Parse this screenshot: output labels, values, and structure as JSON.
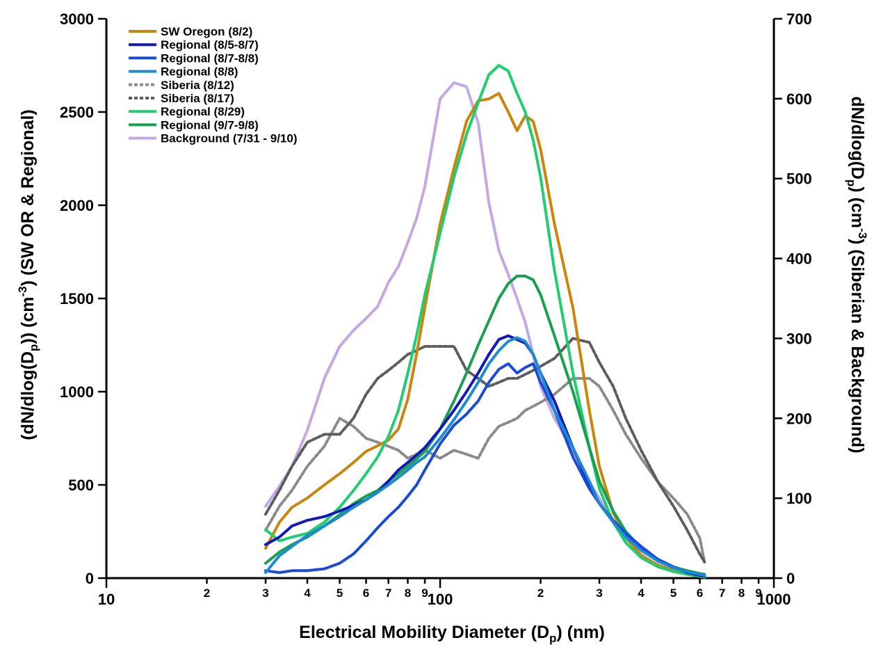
{
  "chart_data": {
    "type": "line",
    "xlabel_main": "Electrical Mobility Diameter (D",
    "xlabel_sub": "p",
    "xlabel_end": ") (nm)",
    "ylabel_left": {
      "a": "(dN/dlog(D",
      "b": "p",
      "c": ")) (cm",
      "d": "-3",
      "e": ") (SW OR & Regional)"
    },
    "ylabel_right": {
      "a": "dN/dlog(D",
      "b": "p",
      "c": ") (cm",
      "d": "-3",
      "e": ") (Siberian & Background)"
    },
    "x_scale": "log",
    "xlim": [
      10,
      1000
    ],
    "ylim_left": [
      0,
      3000
    ],
    "ylim_right": [
      0,
      700
    ],
    "x_major_ticks": [
      {
        "v": 10,
        "label": "10"
      },
      {
        "v": 100,
        "label": "100"
      },
      {
        "v": 1000,
        "label": "1000"
      }
    ],
    "x_minor_ticks": [
      {
        "v": 20,
        "label": "2"
      },
      {
        "v": 30,
        "label": "3"
      },
      {
        "v": 40,
        "label": "4"
      },
      {
        "v": 50,
        "label": "5"
      },
      {
        "v": 60,
        "label": "6"
      },
      {
        "v": 70,
        "label": "7"
      },
      {
        "v": 80,
        "label": "8"
      },
      {
        "v": 90,
        "label": "9"
      },
      {
        "v": 200,
        "label": "2"
      },
      {
        "v": 300,
        "label": "3"
      },
      {
        "v": 400,
        "label": "4"
      },
      {
        "v": 500,
        "label": "5"
      },
      {
        "v": 600,
        "label": "6"
      },
      {
        "v": 700,
        "label": "7"
      },
      {
        "v": 800,
        "label": "8"
      },
      {
        "v": 900,
        "label": "9"
      }
    ],
    "y_left_ticks": [
      0,
      500,
      1000,
      1500,
      2000,
      2500,
      3000
    ],
    "y_right_ticks": [
      0,
      100,
      200,
      300,
      400,
      500,
      600,
      700
    ],
    "legend_position": "top-left",
    "series": [
      {
        "name": "SW Oregon (8/2)",
        "color": "#c8860a",
        "dash": "solid",
        "axis": "left",
        "x": [
          30,
          33,
          36,
          40,
          45,
          50,
          55,
          60,
          65,
          70,
          75,
          80,
          85,
          90,
          100,
          110,
          120,
          130,
          140,
          150,
          160,
          170,
          180,
          190,
          200,
          220,
          250,
          280,
          300,
          330,
          360,
          400,
          450,
          500,
          550,
          600,
          620
        ],
        "y": [
          160,
          300,
          380,
          430,
          500,
          560,
          620,
          680,
          710,
          740,
          800,
          960,
          1200,
          1450,
          1900,
          2200,
          2450,
          2560,
          2570,
          2600,
          2500,
          2400,
          2480,
          2450,
          2300,
          1900,
          1450,
          900,
          600,
          350,
          220,
          120,
          70,
          40,
          20,
          10,
          5
        ]
      },
      {
        "name": "Regional (8/5-8/7)",
        "color": "#1418b8",
        "dash": "solid",
        "axis": "left",
        "x": [
          30,
          33,
          36,
          40,
          45,
          50,
          55,
          60,
          65,
          70,
          75,
          80,
          85,
          90,
          100,
          110,
          120,
          130,
          140,
          150,
          160,
          170,
          180,
          190,
          200,
          220,
          250,
          280,
          300,
          330,
          360,
          400,
          450,
          500,
          550,
          600,
          620
        ],
        "y": [
          180,
          220,
          280,
          310,
          330,
          360,
          390,
          420,
          460,
          520,
          580,
          620,
          660,
          700,
          800,
          900,
          1000,
          1100,
          1200,
          1280,
          1300,
          1280,
          1260,
          1200,
          1100,
          950,
          700,
          500,
          400,
          300,
          230,
          160,
          100,
          60,
          30,
          15,
          10
        ]
      },
      {
        "name": "Regional (8/7-8/8)",
        "color": "#1a4ad6",
        "dash": "solid",
        "axis": "left",
        "x": [
          30,
          33,
          36,
          40,
          45,
          50,
          55,
          60,
          65,
          70,
          75,
          80,
          85,
          90,
          100,
          110,
          120,
          130,
          140,
          150,
          160,
          170,
          180,
          190,
          200,
          220,
          250,
          280,
          300,
          330,
          360,
          400,
          450,
          500,
          550,
          600,
          620
        ],
        "y": [
          40,
          30,
          40,
          40,
          50,
          80,
          130,
          200,
          270,
          330,
          380,
          440,
          500,
          580,
          720,
          820,
          880,
          950,
          1050,
          1120,
          1150,
          1100,
          1130,
          1150,
          1050,
          900,
          650,
          480,
          400,
          310,
          240,
          170,
          100,
          60,
          30,
          20,
          15
        ]
      },
      {
        "name": "Regional (8/8)",
        "color": "#1c8bd0",
        "dash": "solid",
        "axis": "left",
        "x": [
          30,
          33,
          36,
          40,
          45,
          50,
          55,
          60,
          65,
          70,
          75,
          80,
          85,
          90,
          100,
          110,
          120,
          130,
          140,
          150,
          160,
          170,
          180,
          190,
          200,
          220,
          250,
          280,
          300,
          330,
          360,
          400,
          450,
          500,
          550,
          600,
          620
        ],
        "y": [
          30,
          120,
          170,
          230,
          280,
          330,
          380,
          420,
          460,
          500,
          540,
          580,
          620,
          650,
          750,
          850,
          950,
          1050,
          1150,
          1220,
          1270,
          1290,
          1270,
          1200,
          1100,
          900,
          700,
          520,
          400,
          300,
          220,
          150,
          90,
          55,
          35,
          20,
          15
        ]
      },
      {
        "name": "Siberia (8/12)",
        "color": "#8a8a8a",
        "dash": "dotted",
        "axis": "right",
        "x": [
          30,
          33,
          36,
          40,
          45,
          50,
          55,
          60,
          65,
          70,
          75,
          80,
          85,
          90,
          100,
          110,
          120,
          130,
          140,
          150,
          160,
          170,
          180,
          190,
          200,
          220,
          250,
          280,
          300,
          330,
          360,
          400,
          450,
          500,
          550,
          600,
          620
        ],
        "y": [
          60,
          90,
          110,
          140,
          165,
          200,
          190,
          175,
          170,
          165,
          160,
          150,
          155,
          160,
          150,
          160,
          155,
          150,
          175,
          190,
          195,
          200,
          210,
          215,
          220,
          230,
          250,
          250,
          240,
          210,
          180,
          150,
          120,
          100,
          80,
          50,
          20
        ]
      },
      {
        "name": "Siberia (8/17)",
        "color": "#5c5c5c",
        "dash": "dotted",
        "axis": "right",
        "x": [
          30,
          33,
          36,
          40,
          45,
          50,
          55,
          60,
          65,
          70,
          75,
          80,
          85,
          90,
          100,
          110,
          120,
          130,
          140,
          150,
          160,
          170,
          180,
          190,
          200,
          220,
          250,
          280,
          300,
          330,
          360,
          400,
          450,
          500,
          550,
          600,
          620
        ],
        "y": [
          80,
          110,
          140,
          170,
          180,
          180,
          200,
          230,
          250,
          260,
          270,
          280,
          285,
          290,
          290,
          290,
          260,
          250,
          240,
          245,
          250,
          250,
          255,
          260,
          265,
          275,
          300,
          295,
          270,
          240,
          200,
          160,
          120,
          90,
          60,
          30,
          20
        ]
      },
      {
        "name": "Regional (8/29)",
        "color": "#22cc70",
        "dash": "solid",
        "axis": "left",
        "x": [
          30,
          33,
          36,
          40,
          45,
          50,
          55,
          60,
          65,
          70,
          75,
          80,
          85,
          90,
          100,
          110,
          120,
          130,
          140,
          150,
          160,
          170,
          180,
          190,
          200,
          220,
          250,
          280,
          300,
          330,
          360,
          400,
          450,
          500,
          550,
          600,
          620
        ],
        "y": [
          260,
          200,
          220,
          240,
          300,
          380,
          470,
          560,
          650,
          760,
          900,
          1100,
          1300,
          1520,
          1850,
          2150,
          2380,
          2550,
          2700,
          2750,
          2720,
          2600,
          2500,
          2350,
          2150,
          1650,
          1100,
          700,
          480,
          300,
          190,
          110,
          60,
          35,
          20,
          10,
          5
        ]
      },
      {
        "name": "Regional (9/7-9/8)",
        "color": "#18a050",
        "dash": "solid",
        "axis": "left",
        "x": [
          30,
          33,
          36,
          40,
          45,
          50,
          55,
          60,
          65,
          70,
          75,
          80,
          85,
          90,
          100,
          110,
          120,
          130,
          140,
          150,
          160,
          170,
          180,
          190,
          200,
          220,
          250,
          280,
          300,
          330,
          360,
          400,
          450,
          500,
          550,
          600,
          620
        ],
        "y": [
          80,
          140,
          180,
          220,
          280,
          340,
          400,
          440,
          470,
          520,
          560,
          600,
          640,
          680,
          800,
          950,
          1100,
          1250,
          1380,
          1500,
          1580,
          1620,
          1620,
          1600,
          1520,
          1300,
          1000,
          700,
          520,
          360,
          250,
          160,
          100,
          60,
          40,
          25,
          20
        ]
      },
      {
        "name": "Background (7/31 - 9/10)",
        "color": "#c4a8e4",
        "dash": "solid",
        "axis": "right",
        "x": [
          30,
          33,
          36,
          40,
          45,
          50,
          55,
          60,
          65,
          70,
          75,
          80,
          85,
          90,
          100,
          110,
          120,
          130,
          140,
          150,
          160,
          170,
          180,
          190,
          200,
          220,
          250,
          280,
          300,
          330,
          360,
          400,
          450,
          500,
          550,
          600,
          620
        ],
        "y": [
          90,
          115,
          140,
          185,
          250,
          290,
          310,
          325,
          340,
          370,
          390,
          420,
          450,
          490,
          600,
          620,
          615,
          570,
          470,
          410,
          380,
          350,
          320,
          280,
          240,
          200,
          160,
          120,
          100,
          70,
          50,
          30,
          15,
          10,
          5,
          3,
          2
        ]
      }
    ]
  }
}
